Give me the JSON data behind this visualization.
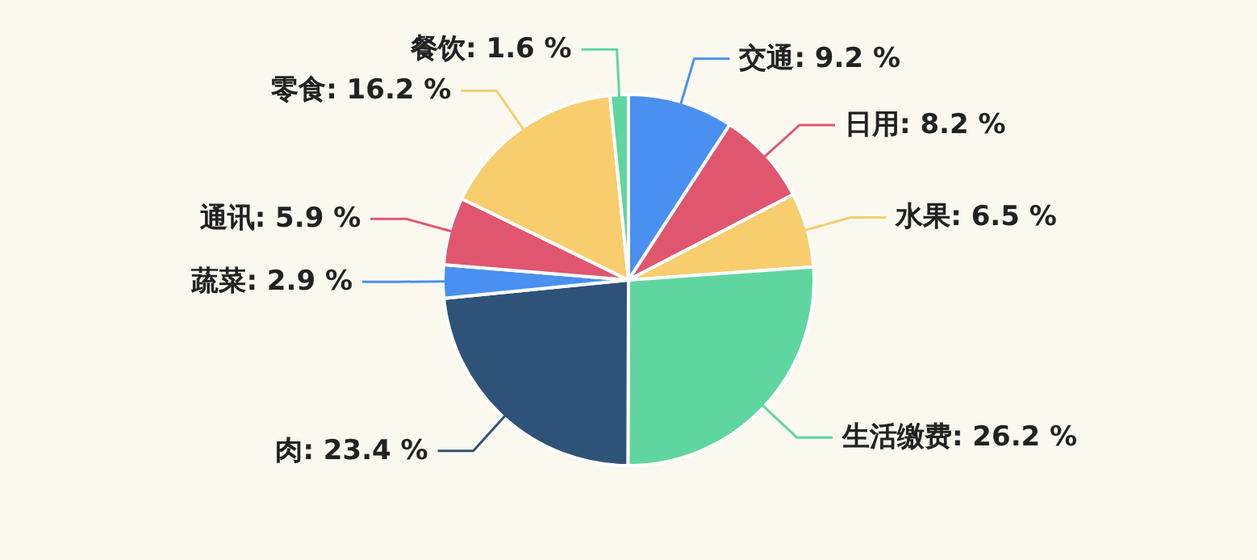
{
  "chart_data": {
    "type": "pie",
    "categories": [
      "交通",
      "日用",
      "水果",
      "生活缴费",
      "肉",
      "蔬菜",
      "通讯",
      "零食",
      "餐饮"
    ],
    "values": [
      9.2,
      8.2,
      6.5,
      26.2,
      23.4,
      2.9,
      5.9,
      16.2,
      1.6
    ],
    "value_labels": [
      "9.2 %",
      "8.2 %",
      "6.5 %",
      "26.2 %",
      "23.4 %",
      "2.9 %",
      "5.9 %",
      "16.2 %",
      "1.6 %"
    ],
    "colors": [
      "#4a90f0",
      "#e0566f",
      "#f7cd6e",
      "#5fd6a0",
      "#2f5378",
      "#4a90f0",
      "#e0566f",
      "#f7cd6e",
      "#5fd6a0"
    ]
  }
}
